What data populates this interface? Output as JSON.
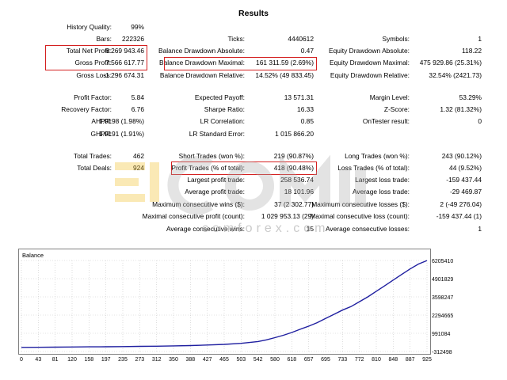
{
  "report": {
    "title": "Results",
    "col1": [
      {
        "label": "History Quality:",
        "value": "99%",
        "y": 34
      },
      {
        "label": "Bars:",
        "value": "222326",
        "y": 49
      },
      {
        "label": "Total Net Profit:",
        "value": "6 269 943.46",
        "y": 64
      },
      {
        "label": "Gross Profit:",
        "value": "7 566 617.77",
        "y": 79
      },
      {
        "label": "Gross Loss:",
        "value": "-1 296 674.31",
        "y": 95
      },
      {
        "label": "Profit Factor:",
        "value": "5.84",
        "y": 123
      },
      {
        "label": "Recovery Factor:",
        "value": "6.76",
        "y": 138
      },
      {
        "label": "AHPR:",
        "value": "1.0198 (1.98%)",
        "y": 153
      },
      {
        "label": "GHPR:",
        "value": "1.0191 (1.91%)",
        "y": 169
      },
      {
        "label": "Total Trades:",
        "value": "462",
        "y": 197
      },
      {
        "label": "Total Deals:",
        "value": "924",
        "y": 212
      }
    ],
    "col2": [
      {
        "label": "Ticks:",
        "value": "4440612",
        "y": 49
      },
      {
        "label": "Balance Drawdown Absolute:",
        "value": "0.47",
        "y": 64
      },
      {
        "label": "Balance Drawdown Maximal:",
        "value": "161 311.59 (2.69%)",
        "y": 79
      },
      {
        "label": "Balance Drawdown Relative:",
        "value": "14.52% (49 833.45)",
        "y": 95
      },
      {
        "label": "Expected Payoff:",
        "value": "13 571.31",
        "y": 123
      },
      {
        "label": "Sharpe Ratio:",
        "value": "16.33",
        "y": 138
      },
      {
        "label": "LR Correlation:",
        "value": "0.85",
        "y": 153
      },
      {
        "label": "LR Standard Error:",
        "value": "1 015 866.20",
        "y": 169
      },
      {
        "label": "Short Trades (won %):",
        "value": "219 (90.87%)",
        "y": 197
      },
      {
        "label": "Profit Trades (% of total):",
        "value": "418 (90.48%)",
        "y": 212
      },
      {
        "label": "Largest profit trade:",
        "value": "258 536.74",
        "y": 227
      },
      {
        "label": "Average profit trade:",
        "value": "18 101.96",
        "y": 242
      },
      {
        "label": "Maximum consecutive wins ($):",
        "value": "37 (2 302.77)",
        "y": 258
      },
      {
        "label": "Maximal consecutive profit (count):",
        "value": "1 029 953.13 (29)",
        "y": 273
      },
      {
        "label": "Average consecutive wins:",
        "value": "15",
        "y": 289
      }
    ],
    "col3": [
      {
        "label": "Symbols:",
        "value": "1",
        "y": 49
      },
      {
        "label": "Equity Drawdown Absolute:",
        "value": "118.22",
        "y": 64
      },
      {
        "label": "Equity Drawdown Maximal:",
        "value": "475 929.86 (25.31%)",
        "y": 79
      },
      {
        "label": "Equity Drawdown Relative:",
        "value": "32.54% (2421.73)",
        "y": 95
      },
      {
        "label": "Margin Level:",
        "value": "53.29%",
        "y": 123
      },
      {
        "label": "Z-Score:",
        "value": "1.32 (81.32%)",
        "y": 138
      },
      {
        "label": "OnTester result:",
        "value": "0",
        "y": 153
      },
      {
        "label": "Long Trades (won %):",
        "value": "243 (90.12%)",
        "y": 197
      },
      {
        "label": "Loss Trades (% of total):",
        "value": "44 (9.52%)",
        "y": 212
      },
      {
        "label": "Largest loss trade:",
        "value": "-159 437.44",
        "y": 227
      },
      {
        "label": "Average loss trade:",
        "value": "-29 469.87",
        "y": 242
      },
      {
        "label": "Maximum consecutive losses ($):",
        "value": "2 (-49 276.04)",
        "y": 258
      },
      {
        "label": "Maximal consecutive loss (count):",
        "value": "-159 437.44 (1)",
        "y": 273
      },
      {
        "label": "Average consecutive losses:",
        "value": "1",
        "y": 289
      }
    ]
  },
  "watermark": {
    "text": "comforex.com"
  },
  "colors": {
    "highlight": "#d42020",
    "line": "#1f1fa0",
    "grid": "#c8c8c8",
    "watermark": "#f2c12e"
  },
  "chart_data": {
    "type": "line",
    "title": "Balance",
    "x_ticks": [
      "0",
      "43",
      "81",
      "120",
      "158",
      "197",
      "235",
      "273",
      "312",
      "350",
      "388",
      "427",
      "465",
      "503",
      "542",
      "580",
      "618",
      "657",
      "695",
      "733",
      "772",
      "810",
      "848",
      "887",
      "925"
    ],
    "y_ticks": [
      "6205410",
      "4901829",
      "3598247",
      "2294665",
      "991084",
      "-312498"
    ],
    "xlim": [
      0,
      960
    ],
    "ylim": [
      -312498,
      6205410
    ],
    "series": [
      {
        "name": "Balance",
        "x": [
          0,
          40,
          80,
          120,
          160,
          200,
          240,
          280,
          320,
          360,
          400,
          440,
          480,
          520,
          560,
          580,
          600,
          620,
          640,
          660,
          680,
          700,
          720,
          740,
          760,
          780,
          800,
          820,
          840,
          860,
          880,
          900,
          920,
          940,
          960
        ],
        "y": [
          -20000,
          -10000,
          0,
          10000,
          20000,
          30000,
          40000,
          55000,
          70000,
          90000,
          115000,
          150000,
          200000,
          270000,
          400000,
          520000,
          680000,
          850000,
          1050000,
          1280000,
          1500000,
          1750000,
          2050000,
          2350000,
          2650000,
          2900000,
          3250000,
          3600000,
          4000000,
          4400000,
          4800000,
          5200000,
          5600000,
          5950000,
          6200000
        ]
      }
    ]
  }
}
